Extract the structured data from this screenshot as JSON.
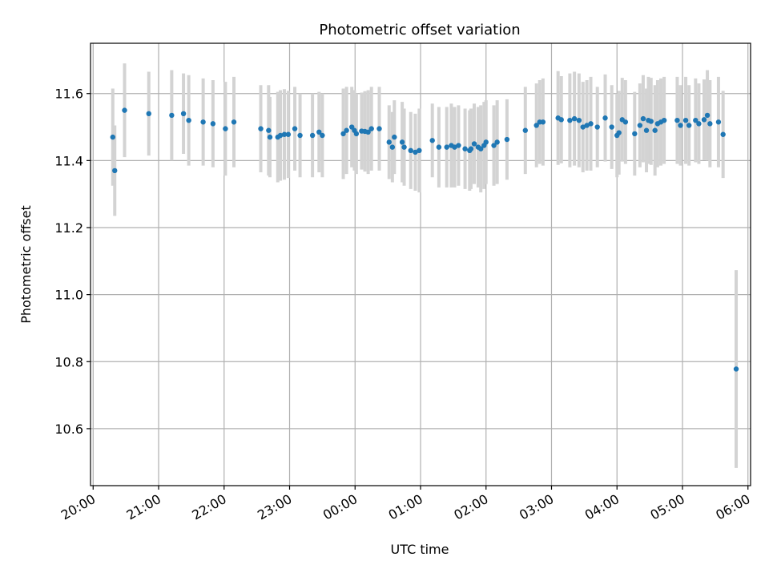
{
  "chart_data": {
    "type": "scatter",
    "title": "Photometric offset variation",
    "xlabel": "UTC time",
    "ylabel": "Photometric offset",
    "xlim": [
      -0.04,
      10.04
    ],
    "ylim": [
      10.43,
      11.75
    ],
    "x_unit": "hours since 20:00 UTC",
    "x_ticks": [
      {
        "value": 0,
        "label": "20:00"
      },
      {
        "value": 1,
        "label": "21:00"
      },
      {
        "value": 2,
        "label": "22:00"
      },
      {
        "value": 3,
        "label": "23:00"
      },
      {
        "value": 4,
        "label": "00:00"
      },
      {
        "value": 5,
        "label": "01:00"
      },
      {
        "value": 6,
        "label": "02:00"
      },
      {
        "value": 7,
        "label": "03:00"
      },
      {
        "value": 8,
        "label": "04:00"
      },
      {
        "value": 9,
        "label": "05:00"
      },
      {
        "value": 10,
        "label": "06:00"
      }
    ],
    "y_ticks": [
      {
        "value": 10.6,
        "label": "10.6"
      },
      {
        "value": 10.8,
        "label": "10.8"
      },
      {
        "value": 11.0,
        "label": "11.0"
      },
      {
        "value": 11.2,
        "label": "11.2"
      },
      {
        "value": 11.4,
        "label": "11.4"
      },
      {
        "value": 11.6,
        "label": "11.6"
      }
    ],
    "grid": true,
    "point_color": "#1f77b4",
    "errorbar_color": "#d3d3d3",
    "series": [
      {
        "points": [
          [
            0.3,
            11.47,
            0.145
          ],
          [
            0.33,
            11.37,
            0.135
          ],
          [
            0.48,
            11.55,
            0.14
          ],
          [
            0.85,
            11.54,
            0.125
          ],
          [
            1.2,
            11.535,
            0.135
          ],
          [
            1.38,
            11.54,
            0.12
          ],
          [
            1.46,
            11.52,
            0.135
          ],
          [
            1.68,
            11.515,
            0.13
          ],
          [
            1.83,
            11.51,
            0.13
          ],
          [
            2.02,
            11.495,
            0.14
          ],
          [
            2.15,
            11.515,
            0.135
          ],
          [
            2.56,
            11.495,
            0.13
          ],
          [
            2.68,
            11.49,
            0.135
          ],
          [
            2.7,
            11.47,
            0.12
          ],
          [
            2.82,
            11.47,
            0.135
          ],
          [
            2.86,
            11.475,
            0.135
          ],
          [
            2.92,
            11.478,
            0.135
          ],
          [
            2.98,
            11.478,
            0.13
          ],
          [
            3.08,
            11.495,
            0.125
          ],
          [
            3.16,
            11.475,
            0.125
          ],
          [
            3.35,
            11.475,
            0.125
          ],
          [
            3.45,
            11.485,
            0.12
          ],
          [
            3.5,
            11.475,
            0.125
          ],
          [
            3.82,
            11.48,
            0.135
          ],
          [
            3.87,
            11.49,
            0.13
          ],
          [
            3.95,
            11.5,
            0.12
          ],
          [
            3.99,
            11.49,
            0.12
          ],
          [
            4.02,
            11.48,
            0.12
          ],
          [
            4.1,
            11.488,
            0.115
          ],
          [
            4.15,
            11.487,
            0.12
          ],
          [
            4.2,
            11.485,
            0.125
          ],
          [
            4.25,
            11.495,
            0.125
          ],
          [
            4.37,
            11.495,
            0.125
          ],
          [
            4.52,
            11.455,
            0.11
          ],
          [
            4.57,
            11.44,
            0.105
          ],
          [
            4.6,
            11.47,
            0.11
          ],
          [
            4.72,
            11.455,
            0.12
          ],
          [
            4.75,
            11.44,
            0.115
          ],
          [
            4.85,
            11.43,
            0.115
          ],
          [
            4.92,
            11.425,
            0.115
          ],
          [
            4.98,
            11.43,
            0.125
          ],
          [
            5.18,
            11.46,
            0.11
          ],
          [
            5.28,
            11.44,
            0.12
          ],
          [
            5.4,
            11.44,
            0.12
          ],
          [
            5.47,
            11.445,
            0.125
          ],
          [
            5.52,
            11.44,
            0.12
          ],
          [
            5.58,
            11.445,
            0.12
          ],
          [
            5.68,
            11.435,
            0.12
          ],
          [
            5.75,
            11.43,
            0.12
          ],
          [
            5.77,
            11.435,
            0.12
          ],
          [
            5.82,
            11.45,
            0.12
          ],
          [
            5.88,
            11.44,
            0.12
          ],
          [
            5.92,
            11.435,
            0.13
          ],
          [
            5.97,
            11.445,
            0.13
          ],
          [
            6.0,
            11.455,
            0.125
          ],
          [
            6.12,
            11.445,
            0.12
          ],
          [
            6.17,
            11.455,
            0.125
          ],
          [
            6.32,
            11.463,
            0.12
          ],
          [
            6.6,
            11.49,
            0.13
          ],
          [
            6.77,
            11.505,
            0.125
          ],
          [
            6.82,
            11.515,
            0.125
          ],
          [
            6.87,
            11.515,
            0.13
          ],
          [
            7.1,
            11.527,
            0.14
          ],
          [
            7.15,
            11.522,
            0.13
          ],
          [
            7.28,
            11.52,
            0.14
          ],
          [
            7.35,
            11.525,
            0.14
          ],
          [
            7.42,
            11.52,
            0.14
          ],
          [
            7.48,
            11.5,
            0.135
          ],
          [
            7.54,
            11.505,
            0.135
          ],
          [
            7.6,
            11.51,
            0.14
          ],
          [
            7.7,
            11.5,
            0.12
          ],
          [
            7.82,
            11.527,
            0.13
          ],
          [
            7.92,
            11.5,
            0.125
          ],
          [
            8.0,
            11.475,
            0.125
          ],
          [
            8.03,
            11.483,
            0.125
          ],
          [
            8.08,
            11.522,
            0.125
          ],
          [
            8.13,
            11.515,
            0.125
          ],
          [
            8.27,
            11.48,
            0.125
          ],
          [
            8.35,
            11.505,
            0.125
          ],
          [
            8.4,
            11.525,
            0.13
          ],
          [
            8.45,
            11.49,
            0.125
          ],
          [
            8.48,
            11.52,
            0.13
          ],
          [
            8.52,
            11.517,
            0.13
          ],
          [
            8.58,
            11.49,
            0.135
          ],
          [
            8.62,
            11.51,
            0.13
          ],
          [
            8.67,
            11.515,
            0.13
          ],
          [
            8.72,
            11.52,
            0.13
          ],
          [
            8.92,
            11.52,
            0.13
          ],
          [
            8.97,
            11.505,
            0.12
          ],
          [
            9.05,
            11.52,
            0.13
          ],
          [
            9.1,
            11.505,
            0.12
          ],
          [
            9.2,
            11.52,
            0.125
          ],
          [
            9.25,
            11.51,
            0.12
          ],
          [
            9.33,
            11.522,
            0.12
          ],
          [
            9.38,
            11.535,
            0.135
          ],
          [
            9.42,
            11.51,
            0.13
          ],
          [
            9.55,
            11.515,
            0.135
          ],
          [
            9.62,
            11.478,
            0.13
          ],
          [
            9.82,
            10.778,
            0.295
          ]
        ]
      }
    ]
  }
}
